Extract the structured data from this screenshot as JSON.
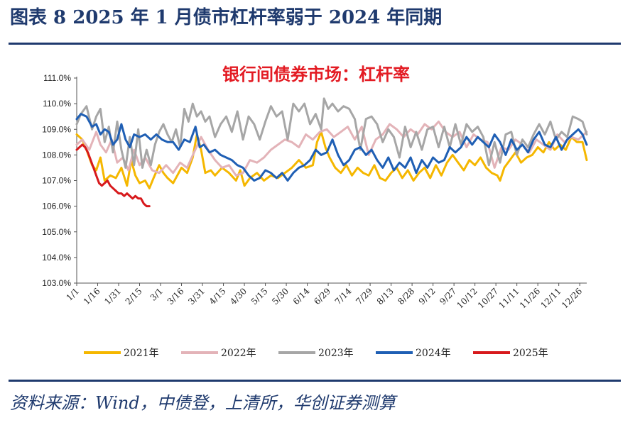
{
  "figure": {
    "title": "图表 8    2025 年 1 月债市杠杆率弱于 2024 年同期",
    "source": "资料来源：Wind，中债登，上清所，华创证券测算"
  },
  "colors": {
    "title": "#1f3a6e",
    "chart_title": "#e31b23",
    "s2021": "#f5b700",
    "s2022": "#e3b3b8",
    "s2023": "#a6a6a6",
    "s2024": "#1f5fb4",
    "s2025": "#d7191c"
  },
  "chart_data": {
    "type": "line",
    "title": "银行间债券市场：杠杆率",
    "xlabel": "",
    "ylabel": "",
    "ylim": [
      103.0,
      111.0
    ],
    "yticks": [
      "103.0%",
      "104.0%",
      "105.0%",
      "106.0%",
      "107.0%",
      "108.0%",
      "109.0%",
      "110.0%",
      "111.0%"
    ],
    "x_ticks": [
      "1/1",
      "1/16",
      "1/31",
      "2/15",
      "3/1",
      "3/16",
      "3/31",
      "4/15",
      "4/30",
      "5/15",
      "5/30",
      "6/14",
      "6/29",
      "7/14",
      "7/29",
      "8/13",
      "8/28",
      "9/12",
      "9/27",
      "10/12",
      "10/27",
      "11/11",
      "11/26",
      "12/11",
      "12/26"
    ],
    "x_units": "day of year",
    "xlim": [
      1,
      366
    ],
    "series": [
      {
        "name": "2021年",
        "x": [
          1,
          5,
          8,
          12,
          15,
          18,
          21,
          25,
          29,
          33,
          37,
          40,
          43,
          46,
          50,
          53,
          56,
          60,
          63,
          66,
          70,
          73,
          76,
          80,
          84,
          87,
          90,
          93,
          97,
          100,
          105,
          110,
          115,
          118,
          121,
          125,
          130,
          135,
          140,
          145,
          150,
          155,
          160,
          165,
          170,
          173,
          176,
          179,
          182,
          186,
          190,
          194,
          198,
          202,
          206,
          210,
          214,
          218,
          222,
          226,
          230,
          234,
          238,
          242,
          246,
          250,
          254,
          258,
          262,
          266,
          270,
          274,
          278,
          282,
          286,
          290,
          294,
          298,
          302,
          304,
          307,
          311,
          315,
          319,
          323,
          327,
          331,
          335,
          339,
          343,
          347,
          351,
          355,
          359,
          363,
          366
        ],
        "y": [
          108.8,
          108.6,
          108.2,
          107.6,
          107.4,
          107.9,
          107.0,
          107.2,
          107.1,
          107.5,
          106.8,
          107.8,
          107.2,
          106.9,
          107.0,
          106.7,
          107.1,
          107.6,
          107.3,
          107.1,
          106.9,
          107.2,
          107.5,
          107.3,
          107.9,
          108.8,
          108.2,
          107.3,
          107.4,
          107.2,
          107.5,
          107.3,
          107.0,
          107.4,
          106.8,
          107.1,
          107.3,
          107.0,
          107.2,
          107.1,
          107.3,
          107.5,
          107.8,
          107.5,
          107.6,
          108.5,
          108.9,
          108.3,
          107.9,
          107.5,
          107.3,
          107.6,
          107.2,
          107.5,
          107.3,
          107.2,
          107.6,
          107.1,
          107.0,
          107.3,
          107.5,
          107.1,
          107.4,
          107.0,
          107.3,
          107.5,
          107.1,
          107.6,
          107.2,
          107.7,
          108.0,
          107.7,
          107.4,
          107.8,
          107.6,
          107.9,
          107.5,
          107.3,
          107.2,
          107.0,
          107.5,
          107.8,
          108.1,
          107.7,
          107.9,
          108.0,
          108.3,
          108.1,
          108.5,
          108.2,
          108.4,
          108.2,
          108.7,
          108.5,
          108.5,
          107.8
        ]
      },
      {
        "name": "2022年",
        "x": [
          1,
          5,
          10,
          15,
          18,
          22,
          26,
          30,
          34,
          38,
          42,
          46,
          50,
          55,
          60,
          65,
          70,
          75,
          80,
          85,
          90,
          95,
          100,
          105,
          110,
          115,
          120,
          125,
          130,
          135,
          140,
          145,
          150,
          155,
          160,
          165,
          170,
          175,
          180,
          185,
          190,
          195,
          200,
          205,
          210,
          215,
          220,
          225,
          230,
          235,
          240,
          245,
          250,
          255,
          260,
          265,
          270,
          275,
          280,
          285,
          290,
          295,
          300,
          305,
          310,
          315,
          320,
          325,
          330,
          335,
          340,
          345,
          350,
          355,
          360,
          366
        ],
        "y": [
          108.4,
          108.6,
          108.2,
          108.9,
          108.4,
          108.1,
          108.6,
          107.7,
          107.9,
          107.4,
          108.2,
          107.6,
          107.9,
          107.4,
          107.3,
          107.6,
          107.3,
          107.7,
          107.5,
          108.1,
          108.7,
          108.2,
          107.8,
          107.5,
          107.6,
          107.2,
          107.3,
          107.8,
          107.7,
          107.9,
          108.2,
          108.4,
          108.6,
          108.5,
          108.3,
          108.8,
          108.6,
          108.9,
          109.0,
          108.7,
          108.9,
          109.1,
          108.6,
          109.1,
          108.0,
          108.6,
          108.8,
          109.2,
          109.0,
          108.7,
          109.0,
          108.8,
          109.2,
          109.0,
          109.3,
          108.9,
          108.7,
          108.9,
          108.3,
          108.8,
          108.6,
          108.5,
          107.5,
          108.3,
          108.2,
          108.6,
          108.4,
          108.1,
          108.6,
          108.4,
          108.2,
          108.8,
          108.5,
          108.7,
          108.6,
          108.9
        ]
      },
      {
        "name": "2023年",
        "x": [
          1,
          4,
          8,
          12,
          15,
          18,
          21,
          24,
          27,
          30,
          33,
          36,
          39,
          42,
          45,
          48,
          51,
          54,
          57,
          60,
          63,
          66,
          69,
          72,
          75,
          78,
          81,
          84,
          87,
          90,
          93,
          96,
          100,
          104,
          108,
          112,
          116,
          120,
          124,
          128,
          132,
          136,
          140,
          144,
          148,
          152,
          156,
          160,
          164,
          168,
          172,
          176,
          178,
          181,
          184,
          188,
          192,
          196,
          200,
          204,
          208,
          212,
          216,
          220,
          224,
          228,
          232,
          236,
          240,
          244,
          248,
          252,
          256,
          260,
          264,
          268,
          272,
          276,
          280,
          284,
          288,
          292,
          296,
          300,
          304,
          308,
          312,
          316,
          320,
          324,
          328,
          332,
          336,
          340,
          344,
          348,
          352,
          356,
          360,
          363,
          366
        ],
        "y": [
          109.2,
          109.6,
          109.9,
          109.0,
          109.5,
          109.8,
          108.5,
          109.1,
          108.1,
          109.3,
          108.2,
          107.5,
          108.7,
          107.6,
          109.0,
          107.5,
          108.2,
          107.6,
          108.4,
          108.9,
          109.2,
          108.8,
          108.5,
          109.0,
          108.3,
          109.8,
          109.3,
          110.0,
          109.5,
          109.7,
          109.3,
          109.5,
          108.7,
          109.2,
          109.5,
          108.9,
          109.7,
          108.6,
          109.5,
          109.2,
          108.6,
          109.3,
          109.9,
          109.5,
          109.7,
          108.6,
          110.0,
          109.7,
          110.0,
          109.2,
          109.6,
          109.0,
          110.2,
          109.8,
          110.0,
          109.7,
          109.9,
          109.8,
          109.4,
          108.2,
          109.4,
          109.5,
          109.2,
          108.5,
          109.0,
          108.7,
          107.9,
          109.1,
          108.3,
          108.9,
          108.2,
          109.0,
          109.1,
          108.3,
          109.1,
          108.3,
          109.2,
          108.4,
          109.2,
          108.9,
          109.1,
          108.7,
          107.6,
          108.5,
          107.7,
          108.8,
          108.9,
          108.0,
          108.6,
          108.3,
          108.8,
          109.2,
          108.8,
          109.3,
          108.6,
          108.9,
          108.7,
          109.5,
          109.4,
          109.3,
          108.8
        ]
      },
      {
        "name": "2024年",
        "x": [
          1,
          4,
          8,
          12,
          15,
          18,
          21,
          24,
          27,
          30,
          33,
          36,
          39,
          42,
          46,
          50,
          54,
          58,
          62,
          66,
          70,
          74,
          78,
          82,
          86,
          89,
          92,
          96,
          100,
          104,
          108,
          112,
          116,
          120,
          124,
          128,
          132,
          136,
          140,
          144,
          148,
          152,
          156,
          160,
          164,
          168,
          172,
          176,
          180,
          184,
          188,
          192,
          196,
          200,
          204,
          208,
          212,
          216,
          220,
          224,
          228,
          232,
          236,
          240,
          244,
          248,
          252,
          256,
          260,
          264,
          268,
          272,
          276,
          280,
          284,
          288,
          292,
          296,
          300,
          304,
          308,
          312,
          316,
          320,
          324,
          328,
          332,
          336,
          340,
          344,
          348,
          352,
          356,
          360,
          363,
          366
        ],
        "y": [
          109.4,
          109.6,
          109.5,
          109.1,
          109.2,
          108.8,
          109.0,
          108.9,
          108.4,
          108.6,
          109.2,
          108.6,
          108.3,
          108.8,
          108.7,
          108.8,
          108.6,
          108.8,
          108.6,
          108.5,
          108.5,
          108.2,
          108.6,
          108.5,
          109.1,
          108.3,
          108.4,
          108.1,
          108.2,
          108.0,
          107.9,
          107.8,
          107.6,
          107.5,
          107.2,
          107.0,
          107.1,
          107.4,
          107.3,
          107.1,
          107.3,
          107.0,
          107.3,
          107.5,
          107.6,
          107.8,
          108.2,
          108.0,
          108.1,
          108.6,
          108.0,
          107.6,
          107.8,
          108.2,
          108.3,
          108.0,
          108.2,
          107.8,
          107.5,
          107.9,
          107.4,
          107.7,
          107.5,
          107.9,
          107.3,
          107.8,
          107.5,
          107.9,
          107.7,
          107.8,
          108.3,
          108.1,
          108.3,
          108.7,
          108.4,
          108.7,
          108.5,
          108.3,
          108.8,
          108.5,
          108.0,
          108.6,
          108.2,
          108.4,
          108.1,
          108.6,
          108.9,
          108.4,
          108.3,
          108.7,
          108.2,
          108.6,
          108.8,
          109.0,
          108.8,
          108.4
        ]
      },
      {
        "name": "2025年",
        "x": [
          1,
          3,
          5,
          7,
          9,
          11,
          13,
          15,
          17,
          19,
          21,
          23,
          25,
          27,
          29,
          31,
          33,
          35,
          37,
          39,
          41,
          43,
          45,
          47,
          49,
          51,
          53
        ],
        "y": [
          108.2,
          108.3,
          108.4,
          108.3,
          108.1,
          107.8,
          107.5,
          107.2,
          106.9,
          106.8,
          106.9,
          107.0,
          106.8,
          106.7,
          106.6,
          106.5,
          106.5,
          106.4,
          106.5,
          106.4,
          106.3,
          106.4,
          106.3,
          106.3,
          106.1,
          106.0,
          106.0
        ]
      }
    ]
  }
}
